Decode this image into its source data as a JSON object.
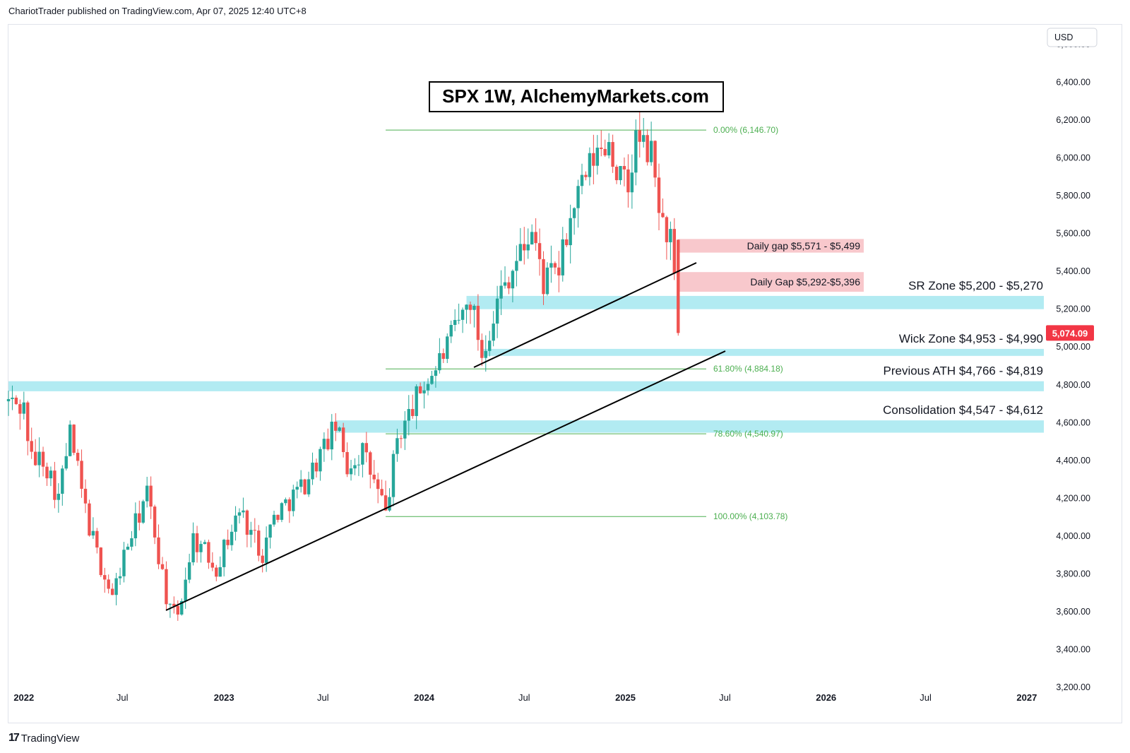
{
  "header": {
    "publisher_line": "ChariotTrader published on TradingView.com, Apr 07, 2025 12:40 UTC+8"
  },
  "footer": {
    "brand": "TradingView"
  },
  "colors": {
    "up": "#26a69a",
    "down": "#ef5350",
    "fib": "#4caf50",
    "zone_blue": "#b2ebf2",
    "zone_red": "#f8c8cc",
    "price_tag": "#f23645",
    "trendline": "#000000"
  },
  "chart_data": {
    "type": "candlestick",
    "title": "SPX 1W, AlchemyMarkets.com",
    "currency": "USD",
    "last_price": "5,074.09",
    "y_ticks": [
      "3,200.00",
      "3,400.00",
      "3,600.00",
      "3,800.00",
      "4,000.00",
      "4,200.00",
      "4,400.00",
      "4,600.00",
      "4,800.00",
      "5,000.00",
      "5,200.00",
      "5,400.00",
      "5,600.00",
      "5,800.00",
      "6,000.00",
      "6,200.00",
      "6,400.00",
      "6,600.00"
    ],
    "x_ticks": [
      {
        "label": "2022",
        "date": "2022-01-03",
        "bold": true
      },
      {
        "label": "Jul",
        "date": "2022-07-01",
        "bold": false
      },
      {
        "label": "2023",
        "date": "2023-01-02",
        "bold": true
      },
      {
        "label": "Jul",
        "date": "2023-07-01",
        "bold": false
      },
      {
        "label": "2024",
        "date": "2024-01-01",
        "bold": true
      },
      {
        "label": "Jul",
        "date": "2024-07-01",
        "bold": false
      },
      {
        "label": "2025",
        "date": "2025-01-01",
        "bold": true
      },
      {
        "label": "Jul",
        "date": "2025-07-01",
        "bold": false
      },
      {
        "label": "2026",
        "date": "2026-01-01",
        "bold": true
      },
      {
        "label": "Jul",
        "date": "2026-07-01",
        "bold": false
      },
      {
        "label": "2027",
        "date": "2027-01-01",
        "bold": true
      }
    ],
    "ylim": [
      3100,
      6700
    ],
    "xlim": [
      "2021-12-06",
      "2027-02-01"
    ],
    "series": [
      {
        "date": "2021-12-06",
        "close": 4713
      },
      {
        "date": "2022-01-03",
        "close": 4677
      },
      {
        "date": "2022-01-17",
        "close": 4397
      },
      {
        "date": "2022-02-07",
        "close": 4418
      },
      {
        "date": "2022-03-07",
        "close": 4204
      },
      {
        "date": "2022-03-28",
        "close": 4546
      },
      {
        "date": "2022-04-25",
        "close": 4131
      },
      {
        "date": "2022-05-16",
        "close": 3901
      },
      {
        "date": "2022-06-13",
        "close": 3674
      },
      {
        "date": "2022-07-04",
        "close": 3899
      },
      {
        "date": "2022-08-15",
        "close": 4228
      },
      {
        "date": "2022-09-26",
        "close": 3585
      },
      {
        "date": "2022-10-10",
        "close": 3583
      },
      {
        "date": "2022-11-07",
        "close": 3993
      },
      {
        "date": "2022-12-19",
        "close": 3839
      },
      {
        "date": "2023-01-30",
        "close": 4136
      },
      {
        "date": "2023-03-13",
        "close": 3916
      },
      {
        "date": "2023-04-03",
        "close": 4105
      },
      {
        "date": "2023-05-29",
        "close": 4282
      },
      {
        "date": "2023-07-24",
        "close": 4582
      },
      {
        "date": "2023-08-14",
        "close": 4369
      },
      {
        "date": "2023-09-11",
        "close": 4450
      },
      {
        "date": "2023-10-23",
        "close": 4117
      },
      {
        "date": "2023-11-13",
        "close": 4514
      },
      {
        "date": "2023-12-25",
        "close": 4769
      },
      {
        "date": "2024-01-22",
        "close": 4890
      },
      {
        "date": "2024-02-12",
        "close": 5005
      },
      {
        "date": "2024-03-25",
        "close": 5254
      },
      {
        "date": "2024-04-15",
        "close": 4967
      },
      {
        "date": "2024-05-20",
        "close": 5304
      },
      {
        "date": "2024-07-15",
        "close": 5615
      },
      {
        "date": "2024-08-05",
        "close": 5344
      },
      {
        "date": "2024-09-02",
        "close": 5408
      },
      {
        "date": "2024-09-30",
        "close": 5751
      },
      {
        "date": "2024-11-04",
        "close": 5995
      },
      {
        "date": "2024-12-02",
        "close": 6090
      },
      {
        "date": "2024-12-16",
        "close": 5930
      },
      {
        "date": "2025-01-06",
        "close": 5827
      },
      {
        "date": "2025-01-20",
        "close": 6101
      },
      {
        "date": "2025-02-17",
        "close": 6013
      },
      {
        "date": "2025-03-10",
        "close": 5638
      },
      {
        "date": "2025-03-24",
        "close": 5581
      },
      {
        "date": "2025-04-07",
        "close": 5074
      }
    ],
    "fib_levels": [
      {
        "label": "0.00% (6,146.70)",
        "value": 6146.7
      },
      {
        "label": "61.80% (4,884.18)",
        "value": 4884.18
      },
      {
        "label": "78.60% (4,540.97)",
        "value": 4540.97
      },
      {
        "label": "100.00% (4,103.78)",
        "value": 4103.78
      }
    ],
    "zones": [
      {
        "label": "Daily gap $5,571 - $5,499",
        "low": 5499,
        "high": 5571,
        "color": "red"
      },
      {
        "label": "Daily Gap $5,292-$5,396",
        "low": 5292,
        "high": 5396,
        "color": "red"
      },
      {
        "label": "SR Zone $5,200 - $5,270",
        "low": 5200,
        "high": 5270,
        "color": "blue"
      },
      {
        "label": "Wick Zone $4,953 - $4,990",
        "low": 4953,
        "high": 4990,
        "color": "blue"
      },
      {
        "label": "Previous ATH $4,766 - $4,819",
        "low": 4766,
        "high": 4819,
        "color": "blue"
      },
      {
        "label": "Consolidation $4,547 - $4,612",
        "low": 4547,
        "high": 4612,
        "color": "blue"
      }
    ]
  }
}
